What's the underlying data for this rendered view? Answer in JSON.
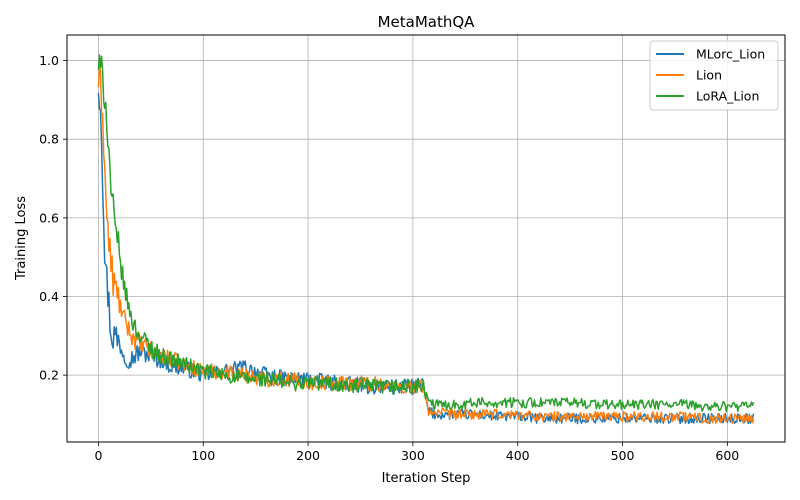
{
  "chart_data": {
    "type": "line",
    "title": "MetaMathQA",
    "xlabel": "Iteration Step",
    "ylabel": "Training Loss",
    "xlim": [
      -30,
      655
    ],
    "ylim": [
      0.03,
      1.065
    ],
    "xticks": [
      0,
      100,
      200,
      300,
      400,
      500,
      600
    ],
    "yticks": [
      0.2,
      0.4,
      0.6,
      0.8,
      1.0
    ],
    "ytick_labels": [
      "0.2",
      "0.4",
      "0.6",
      "0.8",
      "1.0"
    ],
    "grid": true,
    "legend_position": "top-right",
    "series": [
      {
        "name": "MLorc_Lion",
        "color": "#1f77b4",
        "x": [
          0,
          2,
          4,
          6,
          8,
          10,
          12,
          15,
          18,
          20,
          25,
          30,
          35,
          40,
          50,
          60,
          70,
          80,
          90,
          100,
          120,
          140,
          160,
          180,
          200,
          220,
          240,
          260,
          280,
          300,
          310,
          312,
          315,
          320,
          340,
          360,
          380,
          400,
          420,
          440,
          460,
          480,
          500,
          520,
          540,
          560,
          580,
          600,
          625
        ],
        "y": [
          0.94,
          0.9,
          0.72,
          0.52,
          0.44,
          0.38,
          0.31,
          0.3,
          0.29,
          0.28,
          0.25,
          0.24,
          0.25,
          0.26,
          0.25,
          0.24,
          0.22,
          0.22,
          0.21,
          0.2,
          0.21,
          0.22,
          0.2,
          0.19,
          0.19,
          0.18,
          0.18,
          0.17,
          0.17,
          0.17,
          0.18,
          0.14,
          0.11,
          0.1,
          0.1,
          0.1,
          0.095,
          0.095,
          0.09,
          0.09,
          0.09,
          0.09,
          0.09,
          0.09,
          0.09,
          0.09,
          0.09,
          0.09,
          0.09
        ]
      },
      {
        "name": "Lion",
        "color": "#ff7f0e",
        "x": [
          0,
          2,
          4,
          6,
          8,
          10,
          12,
          15,
          18,
          20,
          25,
          30,
          35,
          40,
          50,
          60,
          70,
          80,
          90,
          100,
          120,
          140,
          160,
          180,
          200,
          220,
          240,
          260,
          280,
          300,
          310,
          312,
          315,
          320,
          340,
          360,
          380,
          400,
          420,
          440,
          460,
          480,
          500,
          520,
          540,
          560,
          580,
          600,
          625
        ],
        "y": [
          0.95,
          0.93,
          0.88,
          0.72,
          0.6,
          0.54,
          0.48,
          0.43,
          0.4,
          0.38,
          0.34,
          0.31,
          0.29,
          0.28,
          0.26,
          0.25,
          0.24,
          0.23,
          0.22,
          0.21,
          0.21,
          0.2,
          0.19,
          0.19,
          0.18,
          0.18,
          0.18,
          0.18,
          0.17,
          0.17,
          0.17,
          0.14,
          0.11,
          0.105,
          0.1,
          0.1,
          0.1,
          0.1,
          0.095,
          0.095,
          0.095,
          0.095,
          0.095,
          0.095,
          0.095,
          0.095,
          0.09,
          0.09,
          0.09
        ]
      },
      {
        "name": "LoRA_Lion",
        "color": "#2ca02c",
        "x": [
          0,
          2,
          4,
          6,
          8,
          10,
          12,
          15,
          18,
          20,
          25,
          30,
          35,
          40,
          50,
          60,
          70,
          80,
          90,
          100,
          120,
          140,
          160,
          180,
          200,
          220,
          240,
          260,
          280,
          300,
          310,
          312,
          315,
          320,
          340,
          360,
          380,
          400,
          420,
          440,
          460,
          480,
          500,
          520,
          540,
          560,
          580,
          600,
          625
        ],
        "y": [
          0.99,
          0.97,
          0.96,
          0.92,
          0.86,
          0.76,
          0.68,
          0.58,
          0.53,
          0.5,
          0.42,
          0.36,
          0.32,
          0.3,
          0.27,
          0.25,
          0.24,
          0.23,
          0.22,
          0.21,
          0.2,
          0.19,
          0.19,
          0.18,
          0.18,
          0.18,
          0.17,
          0.17,
          0.17,
          0.17,
          0.17,
          0.15,
          0.13,
          0.125,
          0.125,
          0.13,
          0.13,
          0.13,
          0.13,
          0.13,
          0.13,
          0.125,
          0.125,
          0.125,
          0.125,
          0.125,
          0.12,
          0.12,
          0.12
        ]
      }
    ]
  }
}
